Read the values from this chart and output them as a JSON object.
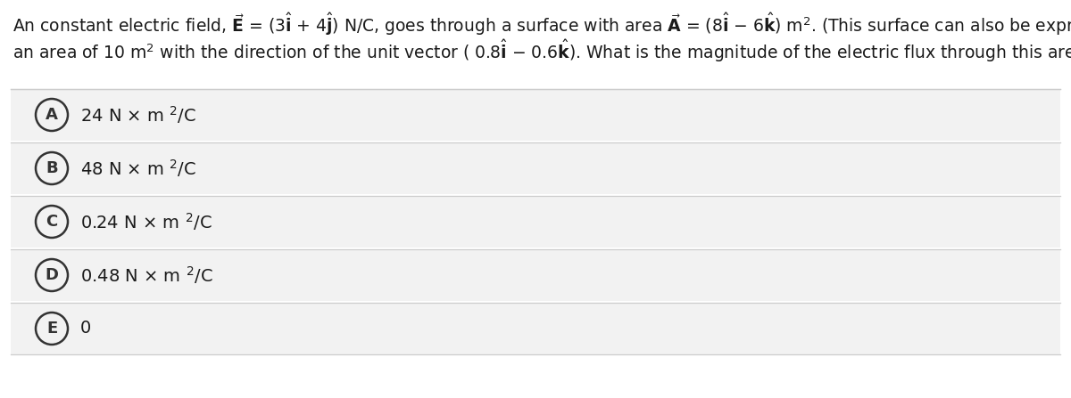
{
  "bg_color": "#ffffff",
  "panel_bg": "#ffffff",
  "option_bg": "#f2f2f2",
  "border_color": "#cccccc",
  "text_color": "#1a1a1a",
  "circle_color": "#333333",
  "figsize": [
    12.0,
    4.47
  ],
  "dpi": 100,
  "options": [
    {
      "label": "A",
      "text": "24 N × m "
    },
    {
      "label": "B",
      "text": "48 N × m "
    },
    {
      "label": "C",
      "text": "0.24 N × m "
    },
    {
      "label": "D",
      "text": "0.48 N × m "
    },
    {
      "label": "E",
      "text": "0"
    }
  ]
}
